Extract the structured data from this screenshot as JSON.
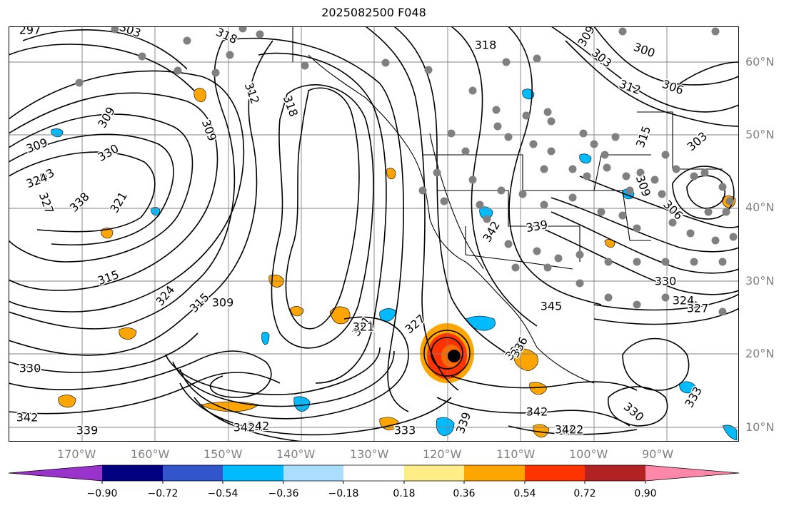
{
  "title": "2025082500 F048",
  "map": {
    "lon_labels": [
      "170°W",
      "160°W",
      "150°W",
      "140°W",
      "130°W",
      "120°W",
      "110°W",
      "100°W",
      "90°W"
    ],
    "lat_labels": [
      "60°N",
      "50°N",
      "40°N",
      "30°N",
      "20°N",
      "10°N"
    ],
    "contour_labels": [
      "297",
      "303",
      "318",
      "318",
      "309",
      "303",
      "300",
      "306",
      "312",
      "315",
      "303",
      "309",
      "312",
      "318",
      "309",
      "309",
      "303",
      "330",
      "324",
      "327",
      "338",
      "321",
      "309",
      "306",
      "339",
      "342",
      "315",
      "324",
      "315",
      "321",
      "327",
      "342",
      "345",
      "336",
      "342",
      "336",
      "339",
      "342",
      "342",
      "330",
      "339",
      "342",
      "330",
      "324",
      "327",
      "321",
      "330",
      "342",
      "333",
      "333",
      "309"
    ],
    "colors": {
      "contour": "#000000",
      "grid": "#808080",
      "coast": "#000000",
      "station": "#808080"
    }
  },
  "colorbar": {
    "tick_labels": [
      "−0.90",
      "−0.72",
      "−0.54",
      "−0.36",
      "−0.18",
      "0.18",
      "0.36",
      "0.54",
      "0.72",
      "0.90"
    ],
    "colors": [
      "#9a33cc",
      "#000080",
      "#3355cc",
      "#00bbff",
      "#aaddff",
      "#ffffff",
      "#ffee88",
      "#ffa500",
      "#ff3300",
      "#b22222",
      "#ff88aa"
    ]
  }
}
